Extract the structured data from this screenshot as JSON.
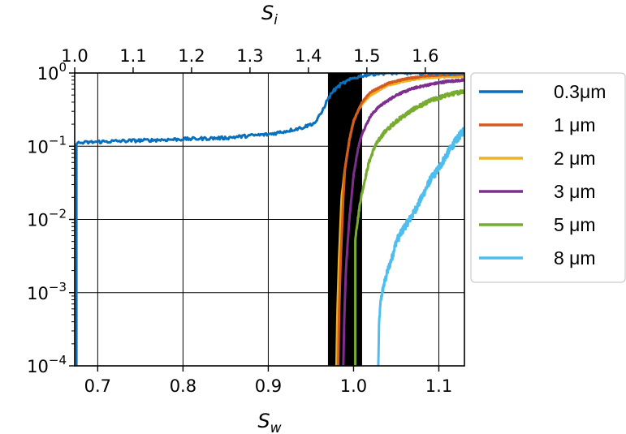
{
  "chart_data": {
    "type": "line",
    "xlabel": "S",
    "xlabel_sub": "w",
    "x2label": "S",
    "x2label_sub": "i",
    "xlim": [
      0.673,
      1.13
    ],
    "x_ticks": [
      0.7,
      0.8,
      0.9,
      1.0,
      1.1
    ],
    "x_tick_labels": [
      "0.7",
      "0.8",
      "0.9",
      "1.0",
      "1.1"
    ],
    "x2lim": [
      1.0,
      1.667
    ],
    "x2_ticks": [
      1.0,
      1.1,
      1.2,
      1.3,
      1.4,
      1.5,
      1.6
    ],
    "x2_tick_labels": [
      "1.0",
      "1.1",
      "1.2",
      "1.3",
      "1.4",
      "1.5",
      "1.6"
    ],
    "yscale": "log",
    "ylim": [
      0.0001,
      1
    ],
    "y_ticks": [
      {
        "base": "10",
        "exp": "−4",
        "value": 0.0001
      },
      {
        "base": "10",
        "exp": "−3",
        "value": 0.001
      },
      {
        "base": "10",
        "exp": "−2",
        "value": 0.01
      },
      {
        "base": "10",
        "exp": "−1",
        "value": 0.1
      },
      {
        "base": "10",
        "exp": "0",
        "value": 1
      }
    ],
    "grid": true,
    "legend_position": "outside-right",
    "shaded_band": {
      "x": [
        0.97,
        1.01
      ],
      "color": "#000000"
    },
    "series": [
      {
        "name": "0.3μm",
        "color": "#0a6fbd",
        "noise": 0.05,
        "x": [
          0.675,
          0.7,
          0.75,
          0.8,
          0.85,
          0.88,
          0.9,
          0.92,
          0.94,
          0.955,
          0.962,
          0.968,
          0.975,
          0.985,
          1.0,
          1.01,
          1.02,
          1.03,
          1.04,
          1.05,
          1.13
        ],
        "y": [
          0.11,
          0.115,
          0.12,
          0.125,
          0.13,
          0.14,
          0.145,
          0.16,
          0.18,
          0.21,
          0.28,
          0.4,
          0.55,
          0.7,
          0.85,
          0.92,
          0.96,
          0.99,
          1.0,
          1.0,
          1.0
        ]
      },
      {
        "name": "1 μm",
        "color": "#d55a1e",
        "noise": 0.02,
        "x": [
          0.982,
          0.983,
          0.985,
          0.988,
          0.99,
          0.995,
          1.0,
          1.005,
          1.01,
          1.02,
          1.04,
          1.06,
          1.08,
          1.1,
          1.13
        ],
        "y": [
          0.0001,
          0.0005,
          0.003,
          0.02,
          0.05,
          0.12,
          0.22,
          0.3,
          0.4,
          0.55,
          0.72,
          0.83,
          0.9,
          0.94,
          0.96
        ]
      },
      {
        "name": "2 μm",
        "color": "#eeb220",
        "noise": 0.02,
        "x": [
          0.98,
          0.981,
          0.983,
          0.986,
          0.99,
          0.995,
          1.0,
          1.005,
          1.01,
          1.02,
          1.04,
          1.06,
          1.08,
          1.1,
          1.13
        ],
        "y": [
          0.0001,
          0.0005,
          0.003,
          0.02,
          0.05,
          0.12,
          0.22,
          0.3,
          0.38,
          0.5,
          0.68,
          0.78,
          0.85,
          0.88,
          0.9
        ]
      },
      {
        "name": "3 μm",
        "color": "#7e2f8e",
        "noise": 0.03,
        "x": [
          0.988,
          0.989,
          0.991,
          0.995,
          1.0,
          1.005,
          1.01,
          1.02,
          1.03,
          1.05,
          1.07,
          1.09,
          1.11,
          1.13
        ],
        "y": [
          0.0001,
          0.0004,
          0.002,
          0.01,
          0.04,
          0.09,
          0.15,
          0.26,
          0.35,
          0.5,
          0.62,
          0.7,
          0.77,
          0.8
        ]
      },
      {
        "name": "5 μm",
        "color": "#77ac30",
        "noise": 0.06,
        "x": [
          1.002,
          1.003,
          1.005,
          1.008,
          1.012,
          1.018,
          1.025,
          1.035,
          1.05,
          1.07,
          1.09,
          1.11,
          1.13
        ],
        "y": [
          0.005,
          0.007,
          0.01,
          0.018,
          0.03,
          0.06,
          0.1,
          0.15,
          0.22,
          0.32,
          0.42,
          0.5,
          0.57
        ]
      },
      {
        "name": "8 μm",
        "color": "#4dbeee",
        "noise": 0.12,
        "x": [
          1.029,
          1.03,
          1.032,
          1.035,
          1.04,
          1.045,
          1.05,
          1.06,
          1.07,
          1.08,
          1.09,
          1.1,
          1.11,
          1.12,
          1.13
        ],
        "y": [
          0.0001,
          0.0004,
          0.0008,
          0.0012,
          0.002,
          0.003,
          0.005,
          0.008,
          0.012,
          0.02,
          0.035,
          0.05,
          0.08,
          0.12,
          0.17
        ]
      }
    ]
  }
}
